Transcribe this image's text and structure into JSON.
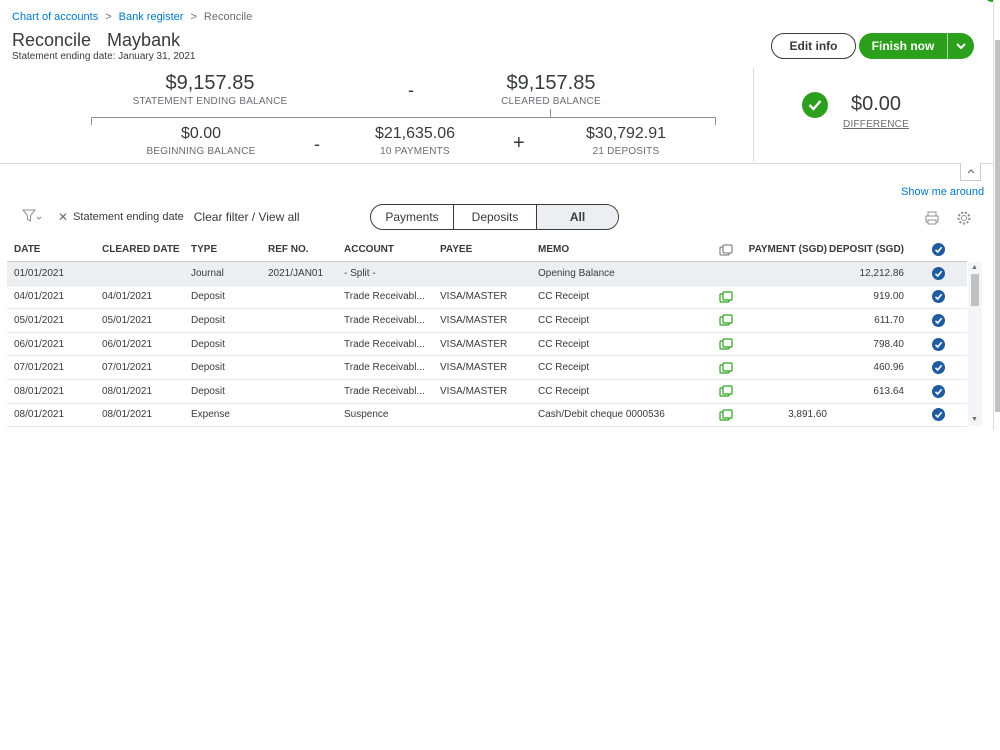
{
  "breadcrumb": {
    "items": [
      "Chart of accounts",
      "Bank register",
      "Reconcile"
    ],
    "separator": ">"
  },
  "header": {
    "title": "Reconcile",
    "account": "Maybank",
    "statement_date": "Statement ending date: January 31, 2021",
    "edit_info_label": "Edit info",
    "finish_label": "Finish now"
  },
  "summary": {
    "statement_ending_balance": "$9,157.85",
    "statement_ending_balance_label": "STATEMENT ENDING BALANCE",
    "minus_sign": "-",
    "cleared_balance": "$9,157.85",
    "cleared_balance_label": "CLEARED BALANCE",
    "beginning_balance": "$0.00",
    "beginning_balance_label": "BEGINNING BALANCE",
    "payments_total": "$21,635.06",
    "payments_count": "10 PAYMENTS",
    "plus_sign": "+",
    "deposits_total": "$30,792.91",
    "deposits_count": "21 DEPOSITS",
    "difference": "$0.00",
    "difference_label": "DIFFERENCE"
  },
  "links": {
    "show_me_around": "Show me around"
  },
  "filters": {
    "active_filter": "Statement ending date",
    "clear_label": "Clear filter / View all",
    "segments": [
      "Payments",
      "Deposits",
      "All"
    ],
    "selected_segment": "All"
  },
  "table": {
    "columns": {
      "date": "DATE",
      "cleared_date": "CLEARED DATE",
      "type": "TYPE",
      "ref_no": "REF NO.",
      "account": "ACCOUNT",
      "payee": "PAYEE",
      "memo": "MEMO",
      "payment": "PAYMENT (SGD)",
      "deposit": "DEPOSIT (SGD)"
    },
    "rows": [
      {
        "date": "01/01/2021",
        "cleared_date": "",
        "type": "Journal",
        "ref_no": "2021/JAN01",
        "account": "- Split -",
        "payee": "",
        "memo": "Opening Balance",
        "attachment": false,
        "payment": "",
        "deposit": "12,212.86"
      },
      {
        "date": "04/01/2021",
        "cleared_date": "04/01/2021",
        "type": "Deposit",
        "ref_no": "",
        "account": "Trade Receivabl...",
        "payee": "VISA/MASTER",
        "memo": "CC Receipt",
        "attachment": true,
        "payment": "",
        "deposit": "919.00"
      },
      {
        "date": "05/01/2021",
        "cleared_date": "05/01/2021",
        "type": "Deposit",
        "ref_no": "",
        "account": "Trade Receivabl...",
        "payee": "VISA/MASTER",
        "memo": "CC Receipt",
        "attachment": true,
        "payment": "",
        "deposit": "611.70"
      },
      {
        "date": "06/01/2021",
        "cleared_date": "06/01/2021",
        "type": "Deposit",
        "ref_no": "",
        "account": "Trade Receivabl...",
        "payee": "VISA/MASTER",
        "memo": "CC Receipt",
        "attachment": true,
        "payment": "",
        "deposit": "798.40"
      },
      {
        "date": "07/01/2021",
        "cleared_date": "07/01/2021",
        "type": "Deposit",
        "ref_no": "",
        "account": "Trade Receivabl...",
        "payee": "VISA/MASTER",
        "memo": "CC Receipt",
        "attachment": true,
        "payment": "",
        "deposit": "460.96"
      },
      {
        "date": "08/01/2021",
        "cleared_date": "08/01/2021",
        "type": "Deposit",
        "ref_no": "",
        "account": "Trade Receivabl...",
        "payee": "VISA/MASTER",
        "memo": "CC Receipt",
        "attachment": true,
        "payment": "",
        "deposit": "613.64"
      },
      {
        "date": "08/01/2021",
        "cleared_date": "08/01/2021",
        "type": "Expense",
        "ref_no": "",
        "account": "Suspence",
        "payee": "",
        "memo": "Cash/Debit cheque 0000536",
        "attachment": true,
        "payment": "3,891.60",
        "deposit": ""
      }
    ]
  },
  "colors": {
    "brand_green": "#2ca01c",
    "link_blue": "#0077c5",
    "check_blue": "#1f5b9e"
  }
}
